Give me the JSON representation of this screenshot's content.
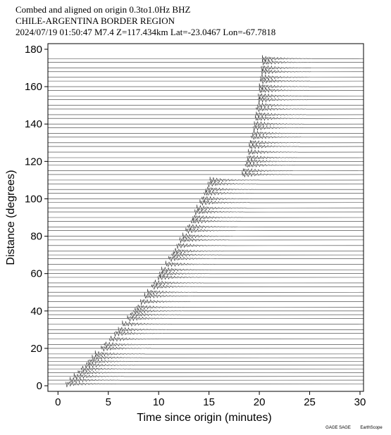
{
  "chart_data": {
    "type": "record-section",
    "title": [
      "Combed and aligned on origin  0.3to1.0Hz  BHZ",
      "CHILE-ARGENTINA BORDER REGION",
      "2024/07/19  01:50:47  M7.4  Z=117.434km Lat=-23.0467 Lon=-67.7818"
    ],
    "xlabel": "Time since origin (minutes)",
    "ylabel": "Distance (degrees)",
    "xlim": [
      -1,
      30.35
    ],
    "ylim": [
      -3,
      183
    ],
    "xticks": [
      0,
      5,
      10,
      15,
      20,
      25,
      30
    ],
    "yticks": [
      0,
      20,
      40,
      60,
      80,
      100,
      120,
      140,
      160,
      180
    ],
    "color": "#333333",
    "traces": {
      "distance": [
        1,
        3,
        5,
        7,
        9,
        11,
        13,
        15,
        17,
        20,
        22,
        25,
        28,
        30,
        33,
        36,
        38,
        40,
        42,
        45,
        48,
        50,
        53,
        55,
        58,
        60,
        62,
        65,
        68,
        70,
        72,
        75,
        78,
        80,
        83,
        85,
        88,
        90,
        93,
        95,
        98,
        100,
        103,
        105,
        108,
        110,
        113,
        115,
        118,
        120,
        122,
        125,
        128,
        130,
        133,
        135,
        138,
        140,
        143,
        145,
        148,
        150,
        153,
        155,
        158,
        160,
        163,
        165,
        168,
        170,
        173,
        175
      ],
      "arrival": [
        0.8,
        1.2,
        1.6,
        2.0,
        2.3,
        2.7,
        3.0,
        3.4,
        3.7,
        4.3,
        4.6,
        5.1,
        5.6,
        6.0,
        6.4,
        6.9,
        7.2,
        7.5,
        7.8,
        8.2,
        8.6,
        8.9,
        9.3,
        9.5,
        9.9,
        10.1,
        10.3,
        10.7,
        11.0,
        11.3,
        11.5,
        11.8,
        12.1,
        12.4,
        12.7,
        12.9,
        13.2,
        13.4,
        13.6,
        13.8,
        14.1,
        14.3,
        14.5,
        14.7,
        14.9,
        15.1,
        18.3,
        18.4,
        18.6,
        18.7,
        18.8,
        18.9,
        19.0,
        19.1,
        19.2,
        19.3,
        19.4,
        19.5,
        19.6,
        19.7,
        19.7,
        19.8,
        19.9,
        19.9,
        20.0,
        20.0,
        20.1,
        20.1,
        20.2,
        20.2,
        20.3,
        20.3
      ]
    }
  },
  "logos": [
    "GAGE SAGE",
    "EarthScope"
  ]
}
